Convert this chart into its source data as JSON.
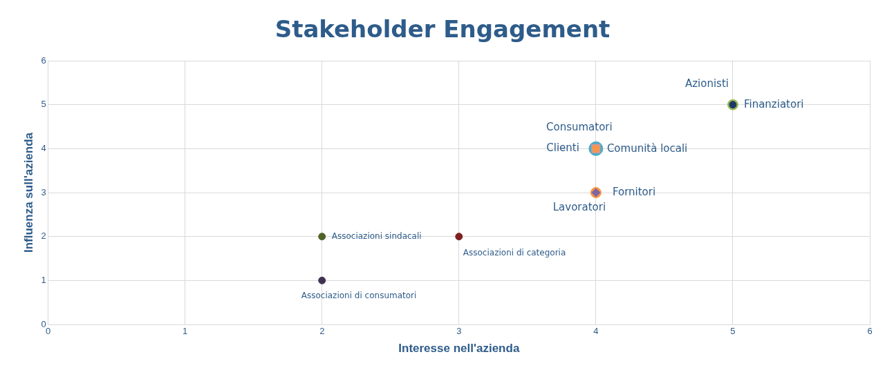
{
  "chart_data": {
    "type": "scatter",
    "title": "Stakeholder Engagement",
    "xlabel": "Interesse nell'azienda",
    "ylabel": "Influenza sull'azienda",
    "xlim": [
      0,
      6
    ],
    "xticks": [
      0,
      1,
      2,
      3,
      4,
      5,
      6
    ],
    "ylim": [
      0,
      6
    ],
    "yticks": [
      0,
      1,
      2,
      3,
      4,
      5,
      6
    ],
    "grid": true,
    "legend": false,
    "series": [
      {
        "name": "Azionisti",
        "color": "#9bbb59",
        "marker": "circle",
        "x": [
          5
        ],
        "values": [
          5
        ]
      },
      {
        "name": "Finanziatori",
        "color": "#1f3864",
        "marker": "circle",
        "x": [
          5
        ],
        "values": [
          5
        ]
      },
      {
        "name": "Consumatori",
        "color": "#4bacc6",
        "marker": "circle",
        "x": [
          4
        ],
        "values": [
          4
        ]
      },
      {
        "name": "Clienti",
        "color": "#d99694",
        "marker": "square",
        "x": [
          4
        ],
        "values": [
          4
        ]
      },
      {
        "name": "Comunità locali",
        "color": "#f79646",
        "marker": "circle",
        "x": [
          4
        ],
        "values": [
          4
        ]
      },
      {
        "name": "Lavoratori",
        "color": "#f79646",
        "marker": "circle",
        "x": [
          4
        ],
        "values": [
          3
        ]
      },
      {
        "name": "Fornitori",
        "color": "#8064a2",
        "marker": "diamond",
        "x": [
          4
        ],
        "values": [
          3
        ]
      },
      {
        "name": "Associazioni sindacali",
        "color": "#4f6228",
        "marker": "circle",
        "x": [
          2
        ],
        "values": [
          2
        ]
      },
      {
        "name": "Associazioni di categoria",
        "color": "#7f1f1f",
        "marker": "circle",
        "x": [
          3
        ],
        "values": [
          2
        ]
      },
      {
        "name": "Associazioni di consumatori",
        "color": "#403151",
        "marker": "circle",
        "x": [
          2
        ],
        "values": [
          1
        ]
      }
    ]
  }
}
